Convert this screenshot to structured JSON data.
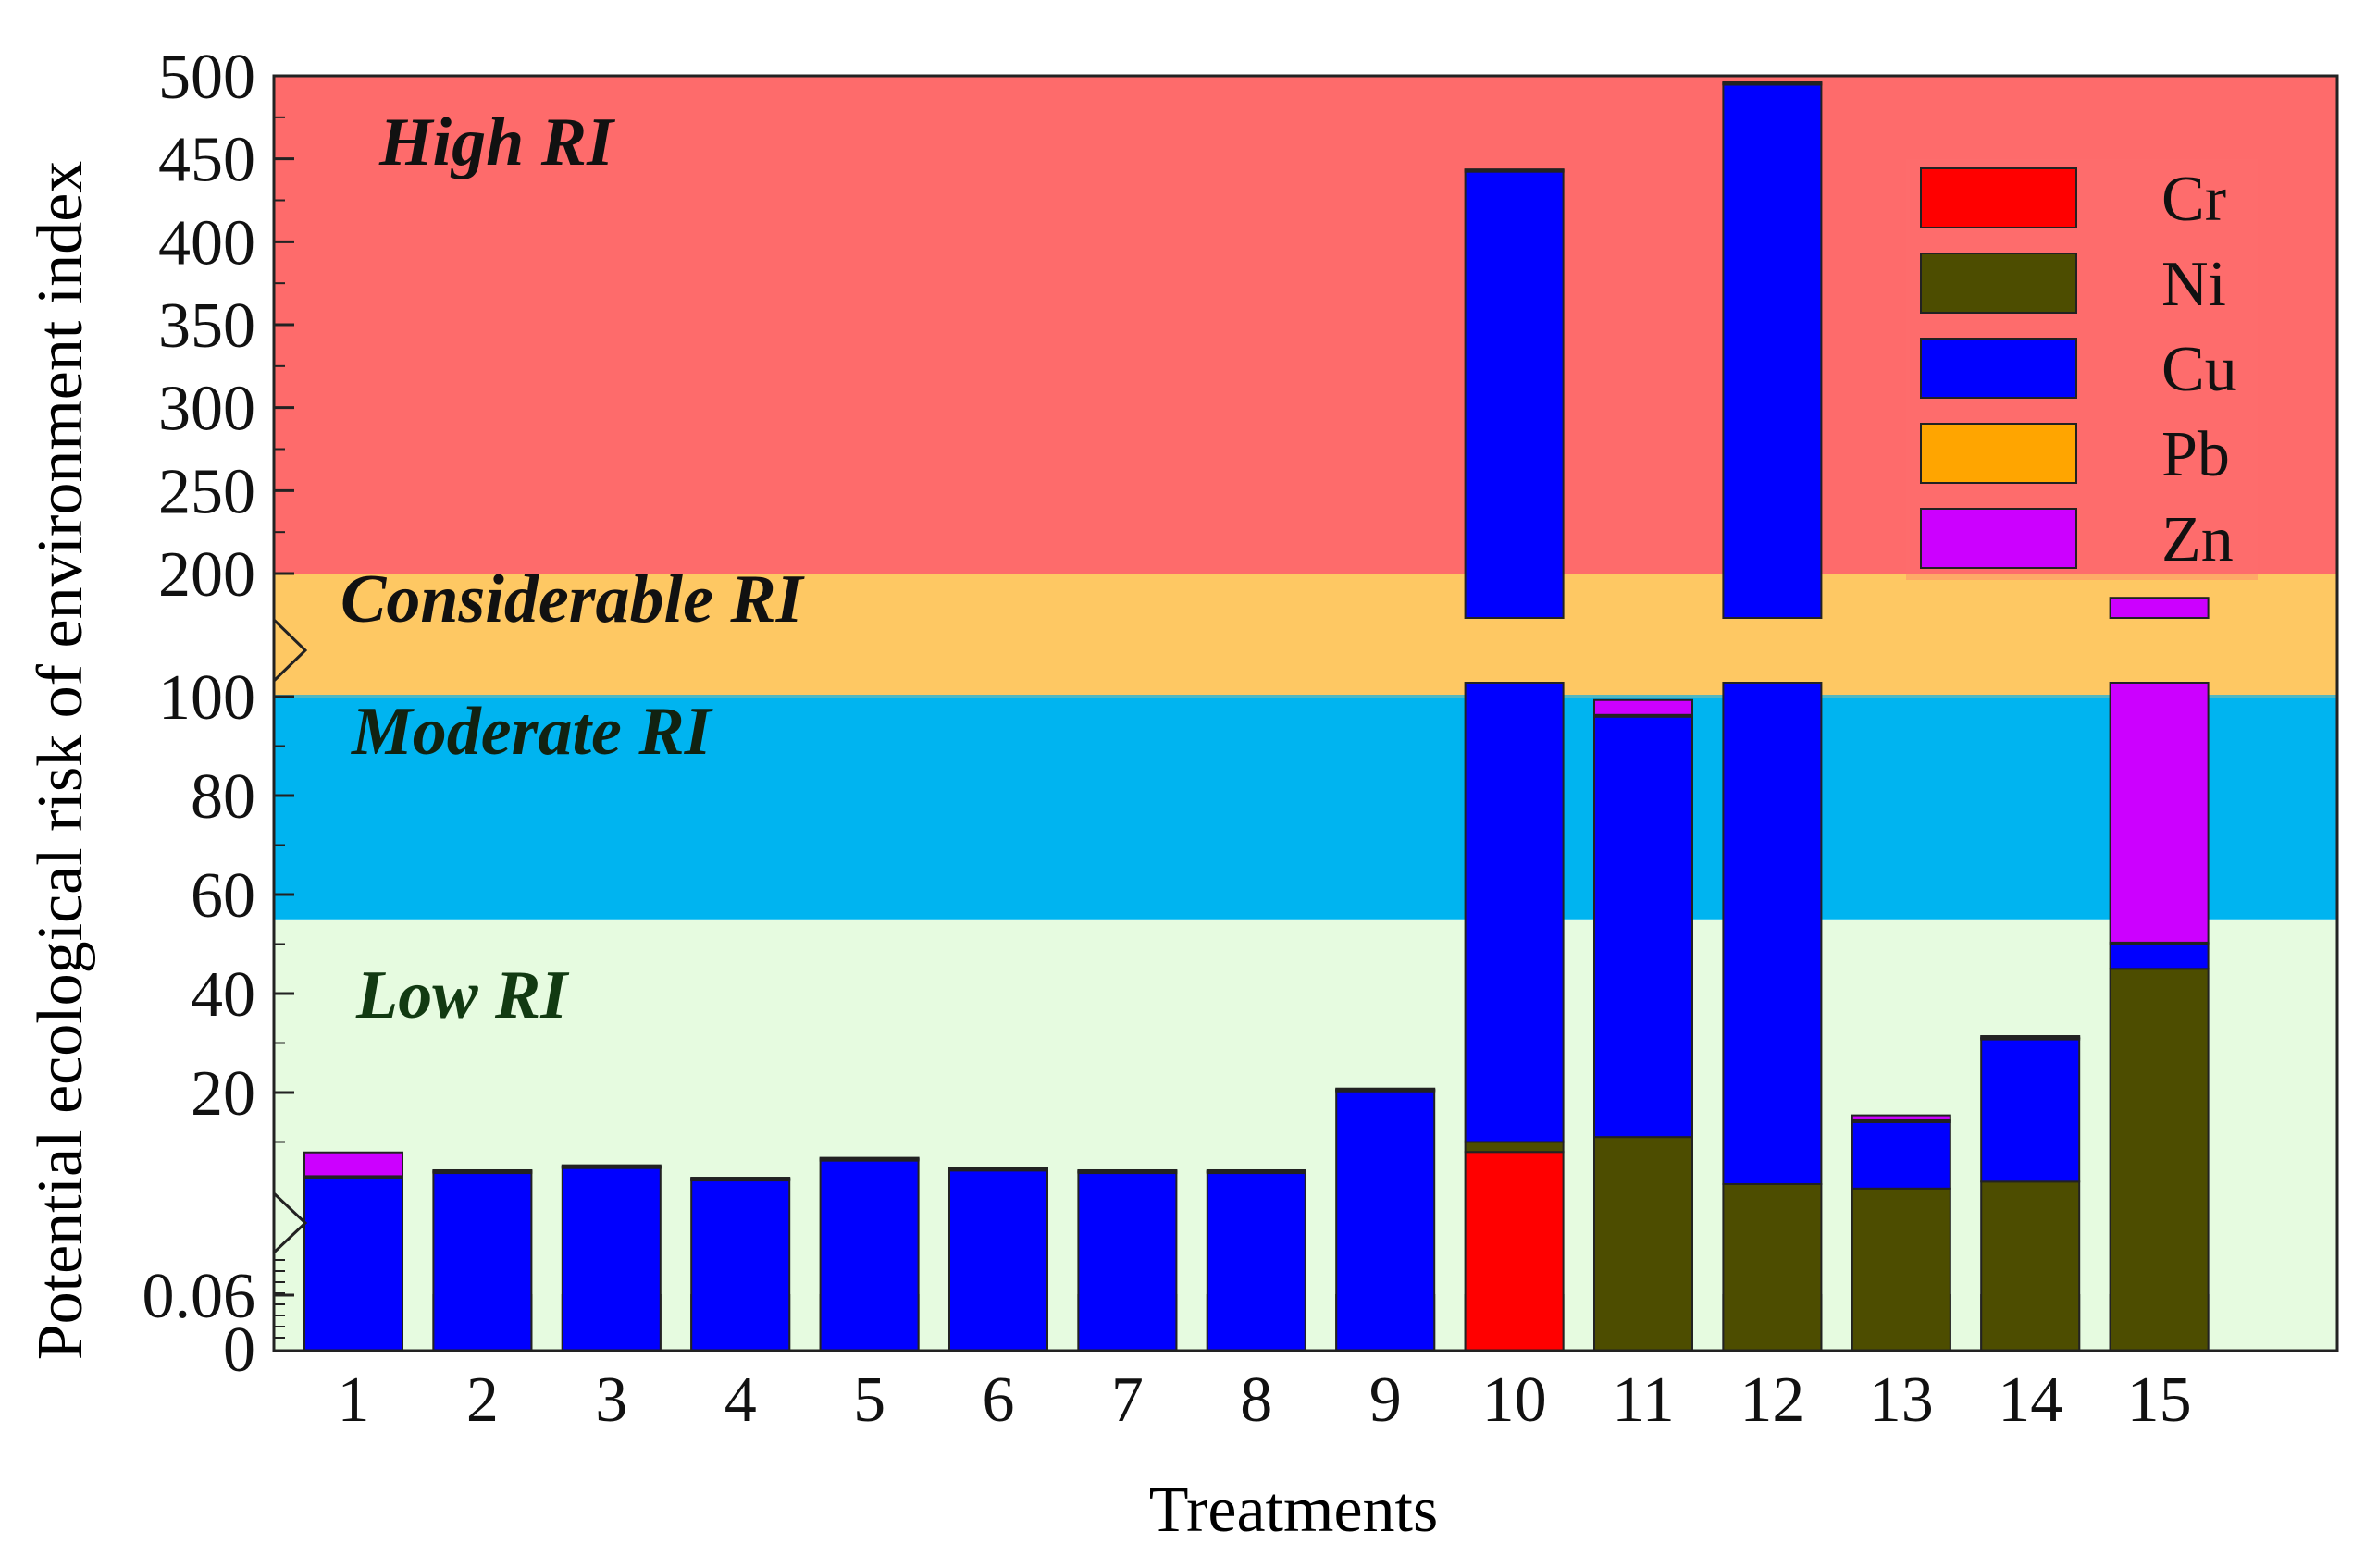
{
  "chart_data": {
    "type": "bar",
    "stacked": true,
    "xlabel": "Treatments",
    "ylabel": "Potential ecological risk of environment index",
    "categories": [
      "1",
      "2",
      "3",
      "4",
      "5",
      "6",
      "7",
      "8",
      "9",
      "10",
      "11",
      "12",
      "13",
      "14",
      "15"
    ],
    "y_axis": {
      "broken": true,
      "segments": [
        {
          "range": [
            0,
            0.06
          ],
          "ticks": [
            "0",
            "0.06"
          ]
        },
        {
          "range": [
            0,
            100
          ],
          "ticks": [
            "20",
            "40",
            "60",
            "80",
            "100"
          ]
        },
        {
          "range": [
            200,
            500
          ],
          "ticks": [
            "200",
            "250",
            "300",
            "350",
            "400",
            "450",
            "500"
          ]
        }
      ]
    },
    "risk_zones": [
      {
        "label": "Low RI",
        "from": 0,
        "to": 55,
        "color": "#e6fbe0",
        "text_color": "#123a12"
      },
      {
        "label": "Moderate RI",
        "from": 55,
        "to": 100,
        "color": "#00b4f0",
        "text_color": "#112211"
      },
      {
        "label": "Considerable RI",
        "from": 100,
        "to": 200,
        "color": "#fec863",
        "text_color": "#111111"
      },
      {
        "label": "High RI",
        "from": 200,
        "to": 500,
        "color": "#fe6b6b",
        "text_color": "#111111"
      }
    ],
    "series": [
      {
        "name": "Cr",
        "color": "#ff0000",
        "values": [
          0.06,
          0.06,
          0.06,
          0.06,
          0.06,
          0.06,
          0.06,
          0.06,
          0.06,
          8.0,
          0.06,
          0.06,
          0.06,
          0.06,
          0.06
        ]
      },
      {
        "name": "Ni",
        "color": "#4d4d00",
        "values": [
          0,
          0,
          0,
          0,
          0,
          0,
          0,
          0,
          0,
          2.0,
          11.0,
          1.5,
          0.6,
          2.0,
          45.0
        ]
      },
      {
        "name": "Cu",
        "color": "#0000ff",
        "values": [
          3.0,
          4.0,
          5.0,
          2.5,
          6.5,
          4.5,
          4.0,
          4.0,
          20.5,
          433,
          85,
          494,
          13.5,
          28.8,
          5.0
        ]
      },
      {
        "name": "Pb",
        "color": "#ffa500",
        "values": [
          0.1,
          0.1,
          0.1,
          0.1,
          0.1,
          0.1,
          0.1,
          0.1,
          0.1,
          0.3,
          0.3,
          0.3,
          0.3,
          0.3,
          0.3
        ]
      },
      {
        "name": "Zn",
        "color": "#cc00ff",
        "values": [
          4.8,
          0.2,
          0.2,
          0.2,
          0.2,
          0.2,
          0.2,
          0.2,
          0.2,
          0.3,
          3.0,
          0.3,
          1.0,
          0.3,
          130
        ]
      }
    ],
    "legend_position": "top-right",
    "grid": false
  }
}
